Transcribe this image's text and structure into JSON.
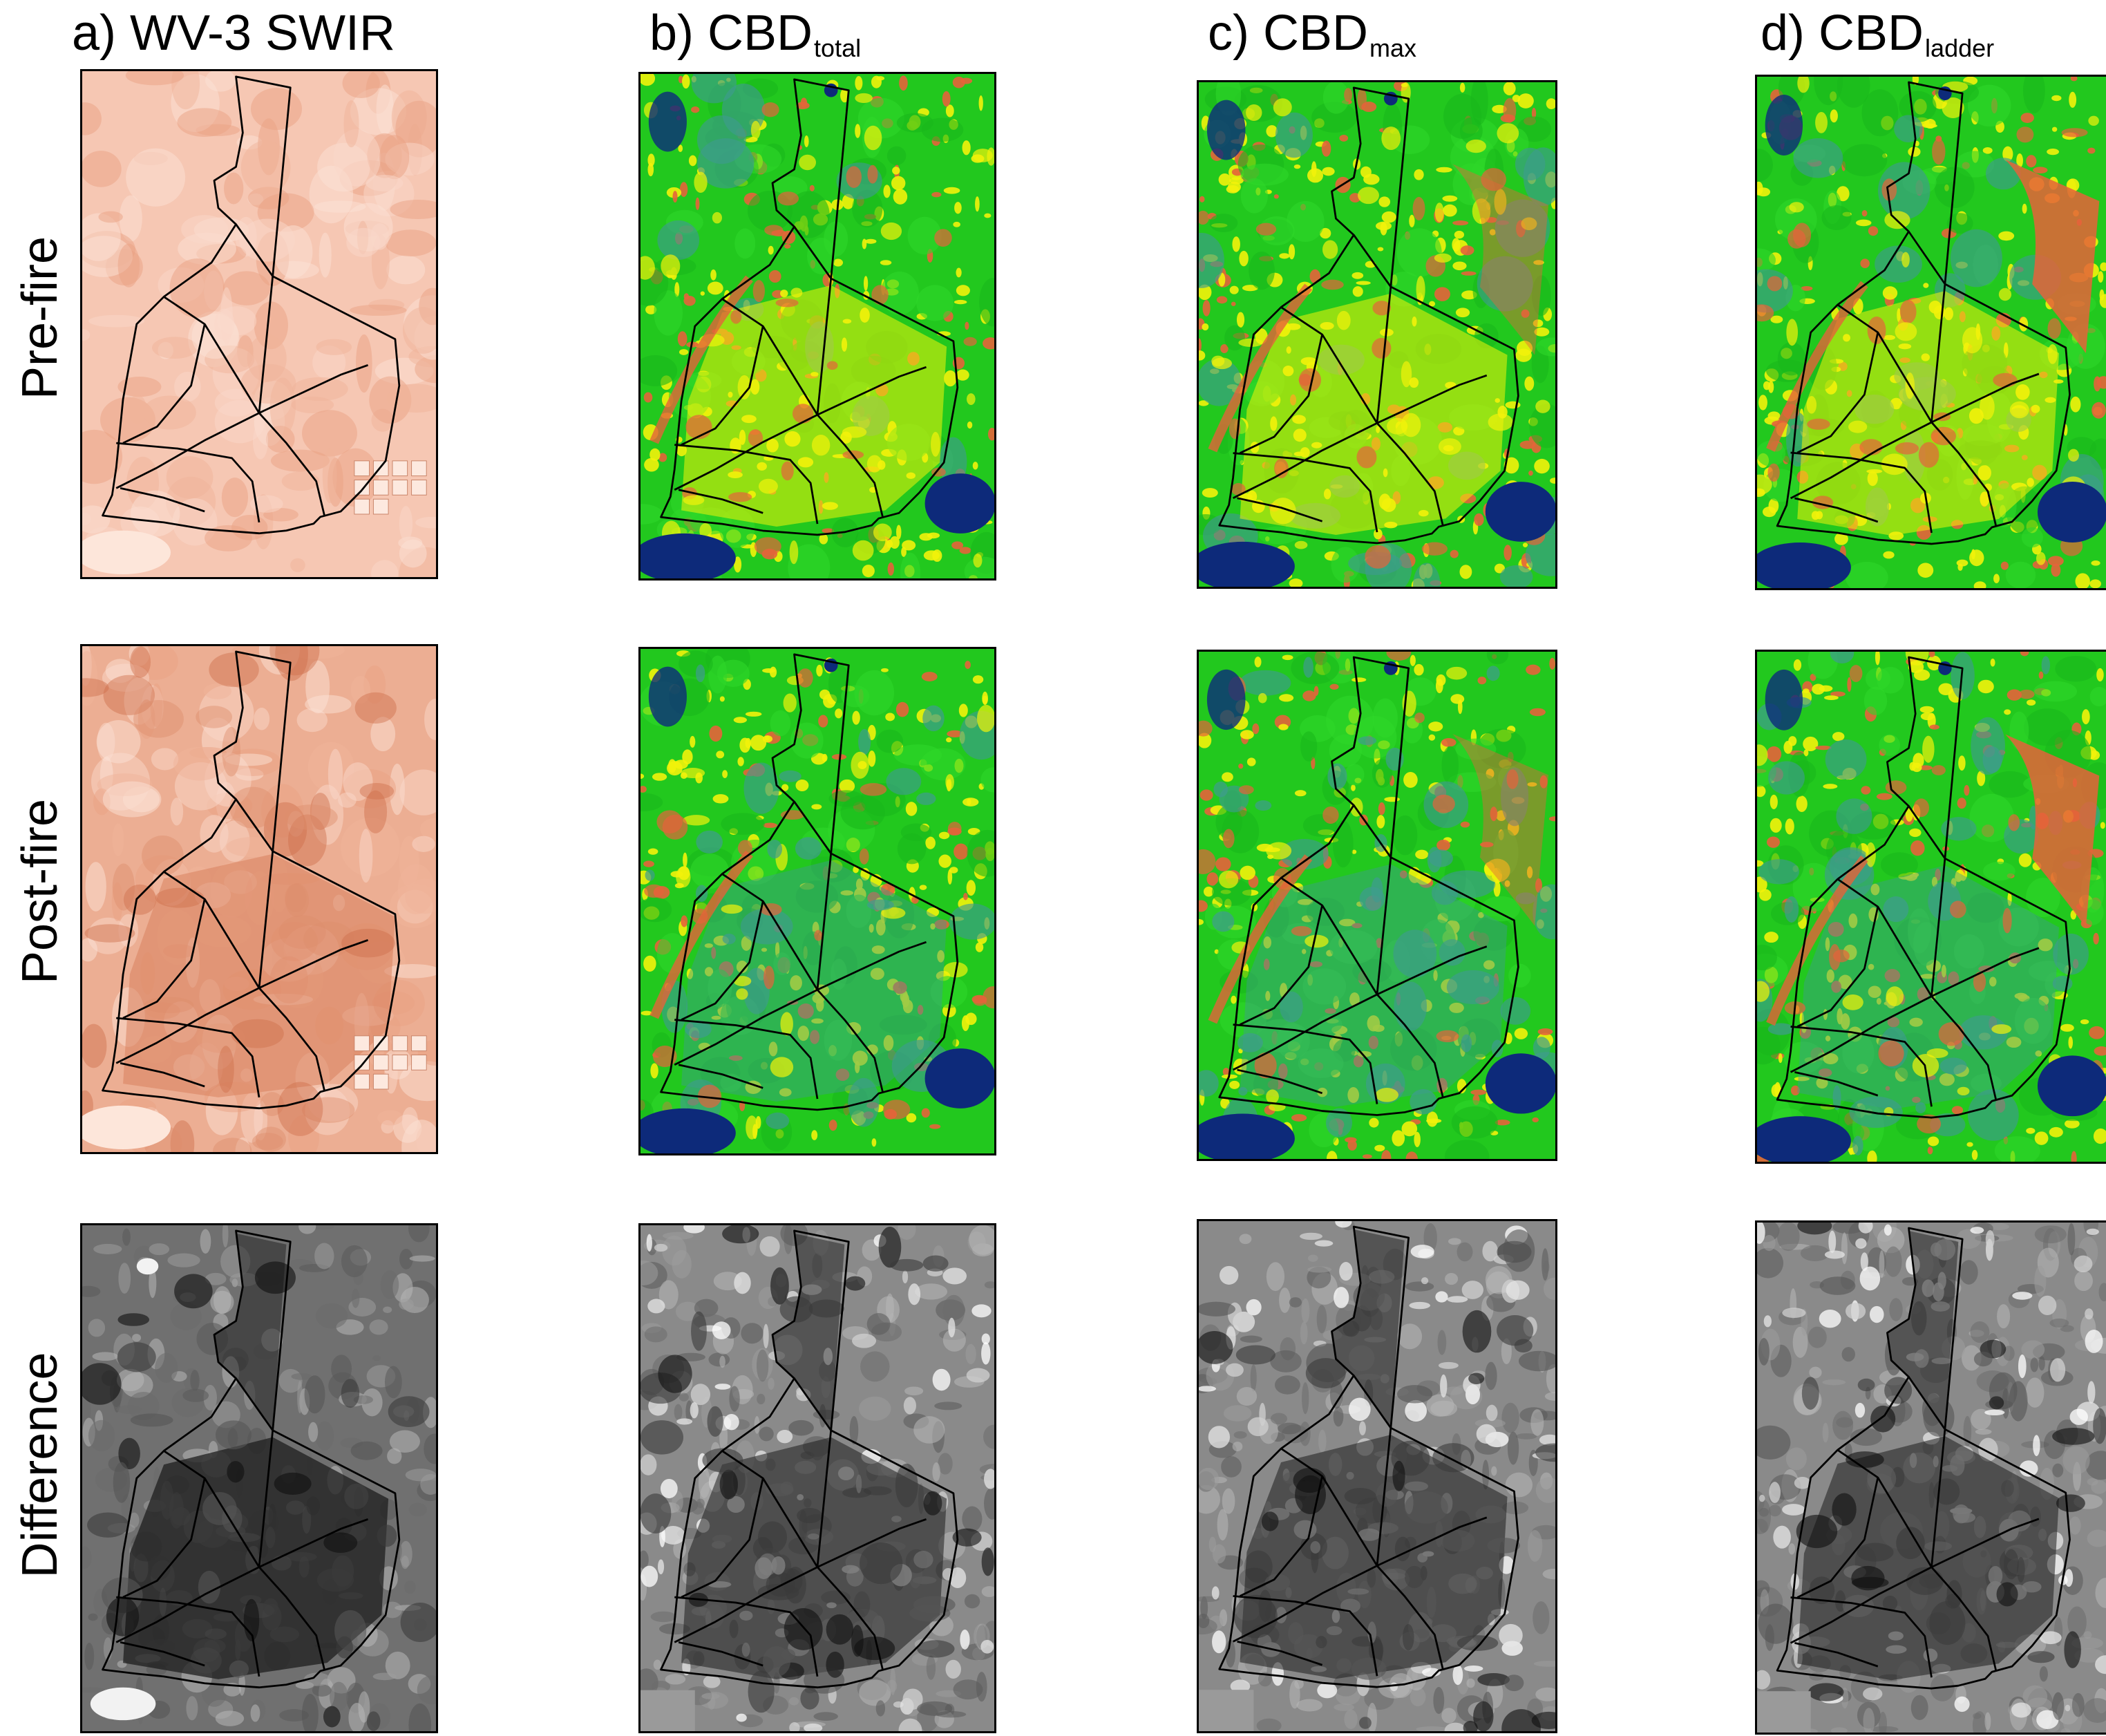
{
  "figure": {
    "columns": [
      {
        "label": "a) WV-3 SWIR",
        "sub": ""
      },
      {
        "label": "b) CBD",
        "sub": "total"
      },
      {
        "label": "c) CBD",
        "sub": "max"
      },
      {
        "label": "d) CBD",
        "sub": "ladder"
      }
    ],
    "rows": [
      "Pre-fire",
      "Post-fire",
      "Difference"
    ]
  },
  "colors": {
    "swir_pre": "#f6c7b3",
    "swir_post": "#ecae93",
    "difference_gray": "#7a7a7a",
    "cbd_green": "#22c81e",
    "cbd_yellow": "#f2f20a",
    "cbd_red": "#e5633a",
    "cbd_teal": "#3e9b8e",
    "cbd_navy": "#0d2a7a"
  }
}
